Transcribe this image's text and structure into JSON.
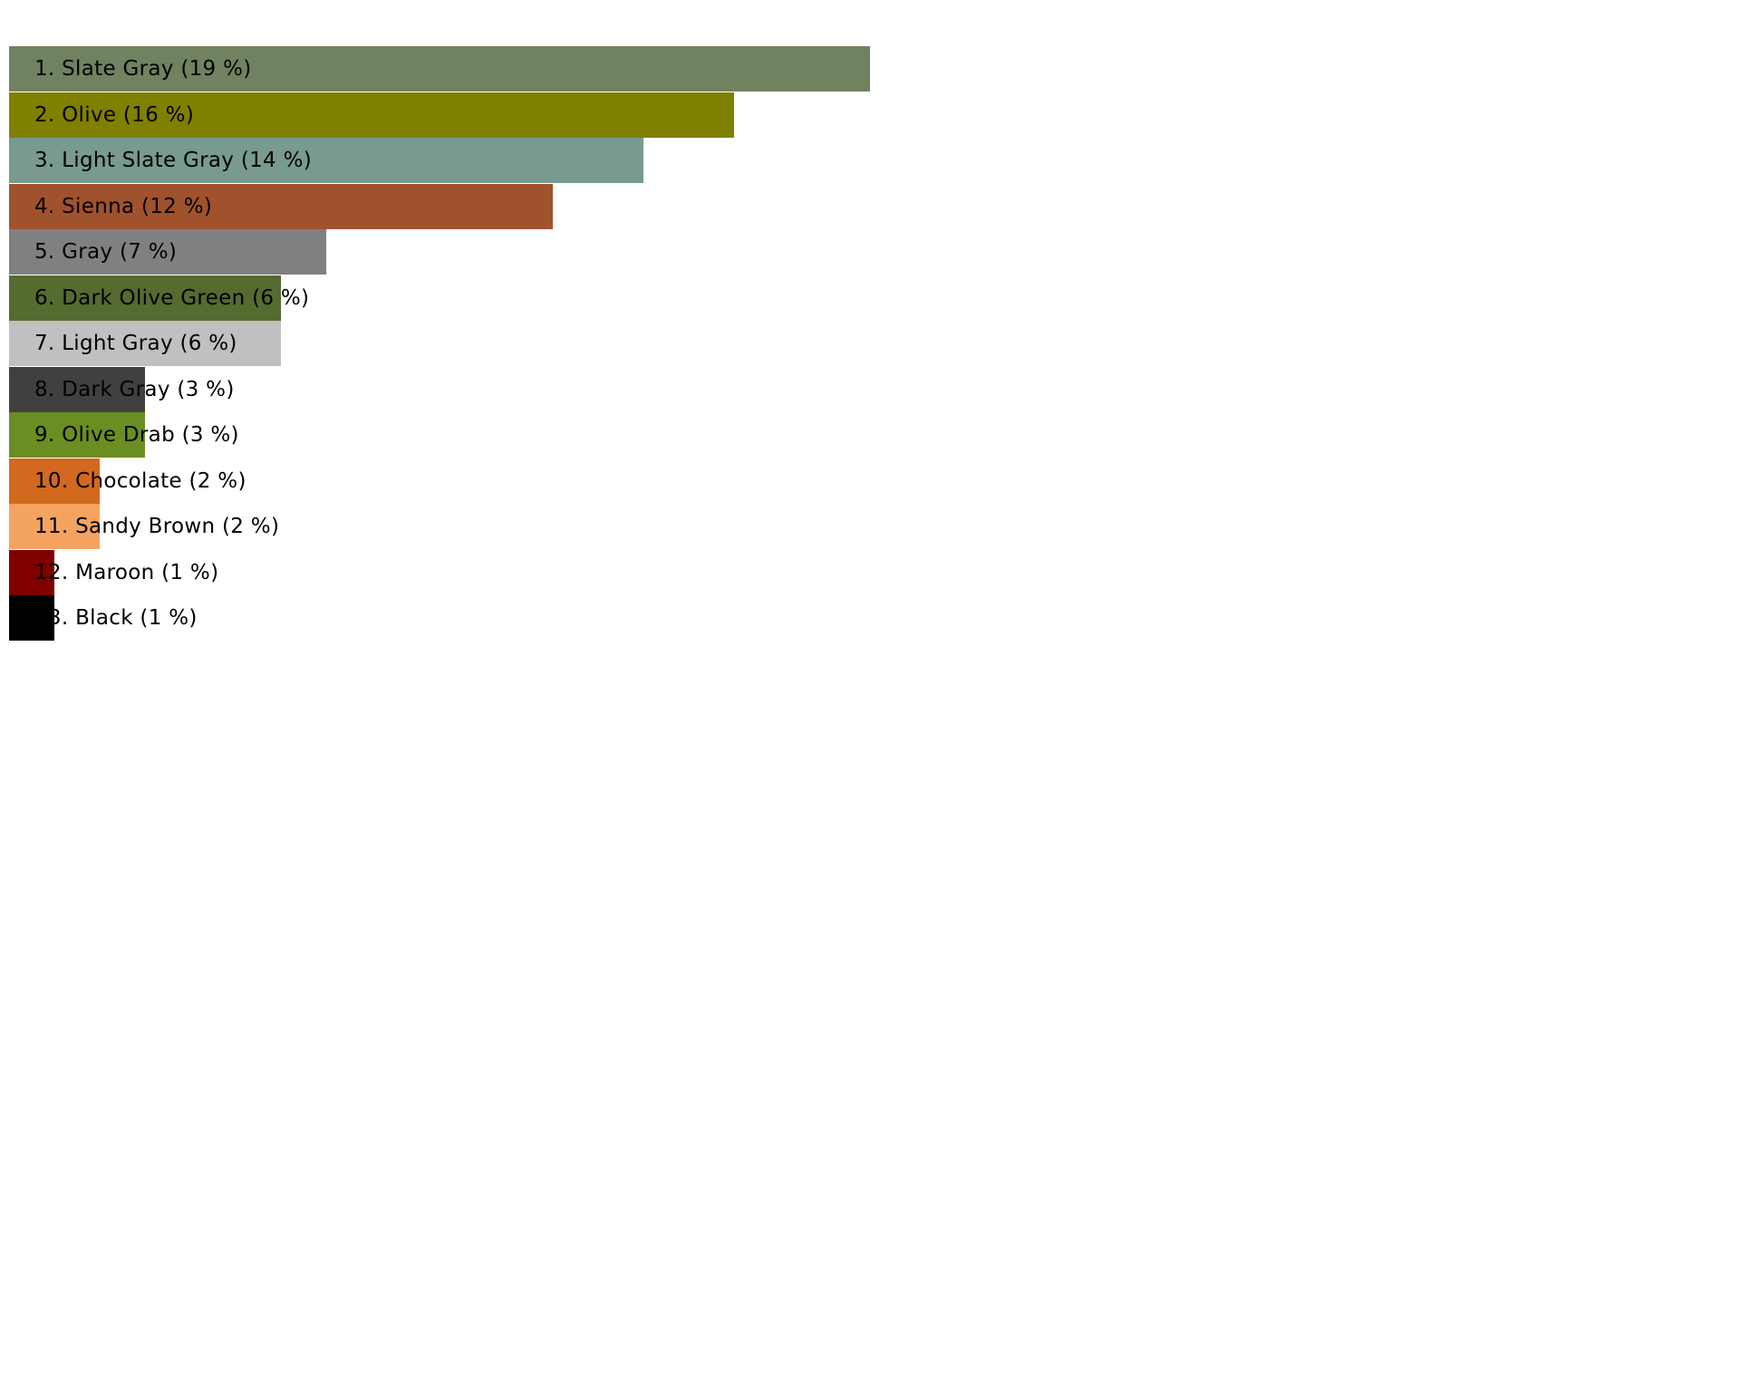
{
  "chart_data": {
    "type": "bar",
    "orientation": "horizontal",
    "unit": "%",
    "legend": "none",
    "grid": false,
    "xlim": [
      0,
      19
    ],
    "series": [
      {
        "rank": "1",
        "name": "Slate Gray",
        "value": 19,
        "label": "1. Slate Gray (19 %)",
        "color": "#708260"
      },
      {
        "rank": "2",
        "name": "Olive",
        "value": 16,
        "label": "2. Olive (16 %)",
        "color": "#808000"
      },
      {
        "rank": "3",
        "name": "Light Slate Gray",
        "value": 14,
        "label": "3. Light Slate Gray (14 %)",
        "color": "#789a90"
      },
      {
        "rank": "4",
        "name": "Sienna",
        "value": 12,
        "label": "4. Sienna (12 %)",
        "color": "#a0522d"
      },
      {
        "rank": "5",
        "name": "Gray",
        "value": 7,
        "label": "5. Gray (7 %)",
        "color": "#808080"
      },
      {
        "rank": "6",
        "name": "Dark Olive Green",
        "value": 6,
        "label": "6. Dark Olive Green (6 %)",
        "color": "#556b2f"
      },
      {
        "rank": "7",
        "name": "Light Gray",
        "value": 6,
        "label": "7. Light Gray (6 %)",
        "color": "#c0c0c0"
      },
      {
        "rank": "8",
        "name": "Dark Gray",
        "value": 3,
        "label": "8. Dark Gray (3 %)",
        "color": "#404040"
      },
      {
        "rank": "9",
        "name": "Olive Drab",
        "value": 3,
        "label": "9. Olive Drab (3 %)",
        "color": "#6b8e23"
      },
      {
        "rank": "10",
        "name": "Chocolate",
        "value": 2,
        "label": "10. Chocolate (2 %)",
        "color": "#d2691e"
      },
      {
        "rank": "11",
        "name": "Sandy Brown",
        "value": 2,
        "label": "11. Sandy Brown (2 %)",
        "color": "#f4a460"
      },
      {
        "rank": "12",
        "name": "Maroon",
        "value": 1,
        "label": "12. Maroon (1 %)",
        "color": "#800000"
      },
      {
        "rank": "13",
        "name": "Black",
        "value": 1,
        "label": "13. Black (1 %)",
        "color": "#000000"
      }
    ]
  }
}
